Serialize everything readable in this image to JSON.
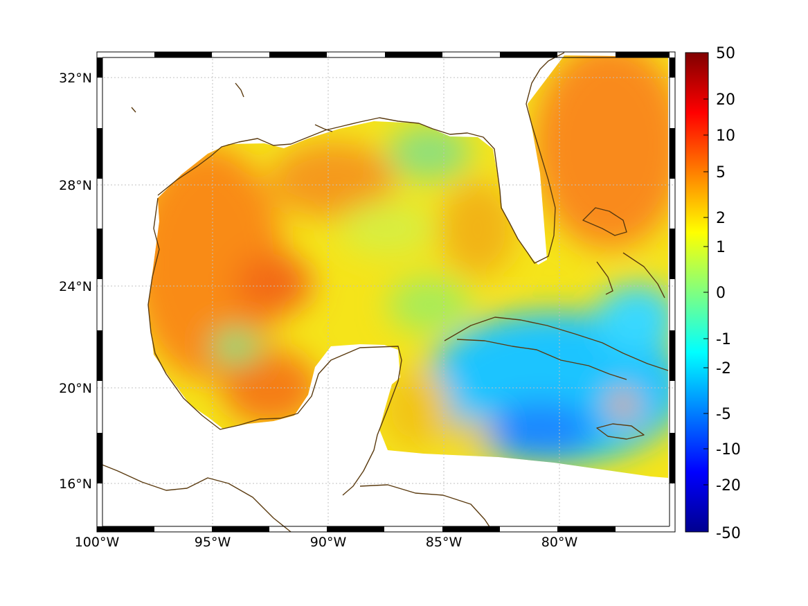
{
  "map": {
    "x_ticks": [
      "100°W",
      "95°W",
      "90°W",
      "85°W",
      "80°W"
    ],
    "y_ticks": [
      "32°N",
      "28°N",
      "24°N",
      "20°N",
      "16°N"
    ],
    "colorbar": {
      "tick_labels": [
        "50",
        "20",
        "10",
        "5",
        "2",
        "1",
        "0",
        "-1",
        "-2",
        "-5",
        "-10",
        "-20",
        "-50"
      ],
      "colormap": "jet",
      "colors": [
        "#00008f",
        "#0000ff",
        "#0080ff",
        "#00ffff",
        "#80ff80",
        "#ffff00",
        "#ff8000",
        "#ff0000",
        "#800000"
      ]
    },
    "coastline_color": "#5a3a0f",
    "gridlines": true,
    "regions": [
      {
        "name": "western-gulf",
        "level": "high",
        "color": "#f98b18"
      },
      {
        "name": "bay-of-campeche",
        "level": "high",
        "color": "#f57d14"
      },
      {
        "name": "atlantic-east-of-florida",
        "level": "high",
        "color": "#f98a1c"
      },
      {
        "name": "central-gulf",
        "level": "mid",
        "color": "#f5e41a"
      },
      {
        "name": "eastern-gulf",
        "level": "mid",
        "color": "#f2c516"
      },
      {
        "name": "caribbean",
        "level": "low",
        "color": "#1ec4ff"
      }
    ]
  }
}
